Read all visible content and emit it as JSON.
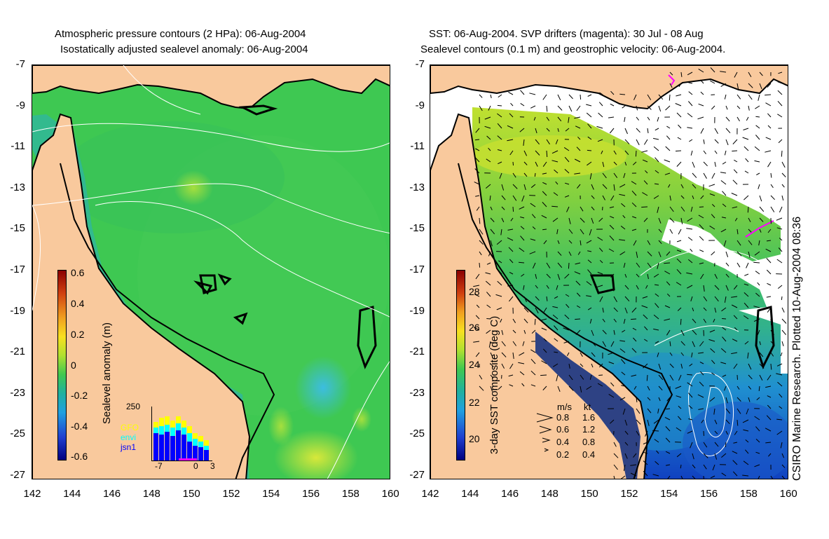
{
  "left_title": {
    "line1": "Atmospheric pressure contours (2 HPa): 06-Aug-2004",
    "line2": "Isostatically adjusted sealevel anomaly: 06-Aug-2004"
  },
  "right_title": {
    "line1": "SST: 06-Aug-2004. SVP drifters (magenta): 30 Jul - 08 Aug",
    "line2": "Sealevel contours (0.1 m) and geostrophic velocity: 06-Aug-2004."
  },
  "y_ticks": [
    "-7",
    "-9",
    "-11",
    "-13",
    "-15",
    "-17",
    "-19",
    "-21",
    "-23",
    "-25",
    "-27"
  ],
  "x_ticks": [
    "142",
    "144",
    "146",
    "148",
    "150",
    "152",
    "154",
    "156",
    "158",
    "160"
  ],
  "left_colorbar": {
    "label": "Sealevel anomaly (m)",
    "ticks": [
      "0.6",
      "0.4",
      "0.2",
      "0",
      "-0.2",
      "-0.4",
      "-0.6"
    ]
  },
  "right_colorbar": {
    "label": "3-day SST composite (deg C)",
    "ticks": [
      "28",
      "26",
      "24",
      "22",
      "20"
    ]
  },
  "histogram": {
    "y_max": "250",
    "x_ticks": [
      "-7",
      "0",
      "3"
    ],
    "legend": [
      {
        "name": "GFO",
        "color": "#ffff00"
      },
      {
        "name": "envi",
        "color": "#00ffff"
      },
      {
        "name": "jsn1",
        "color": "#0000ff"
      }
    ]
  },
  "velocity_legend": {
    "header_ms": "m/s",
    "header_kt": "kt",
    "rows": [
      {
        "ms": "0.8",
        "kt": "1.6"
      },
      {
        "ms": "0.6",
        "kt": "1.2"
      },
      {
        "ms": "0.4",
        "kt": "0.8"
      },
      {
        "ms": "0.2",
        "kt": "0.4"
      }
    ]
  },
  "credit": "CSIRO Marine Research. Plotted 10-Aug-2004 08:36",
  "colors": {
    "land": "#f9c99d",
    "ocean_green": "#33cc55",
    "coast": "#000000",
    "contour": "#ffffff"
  }
}
